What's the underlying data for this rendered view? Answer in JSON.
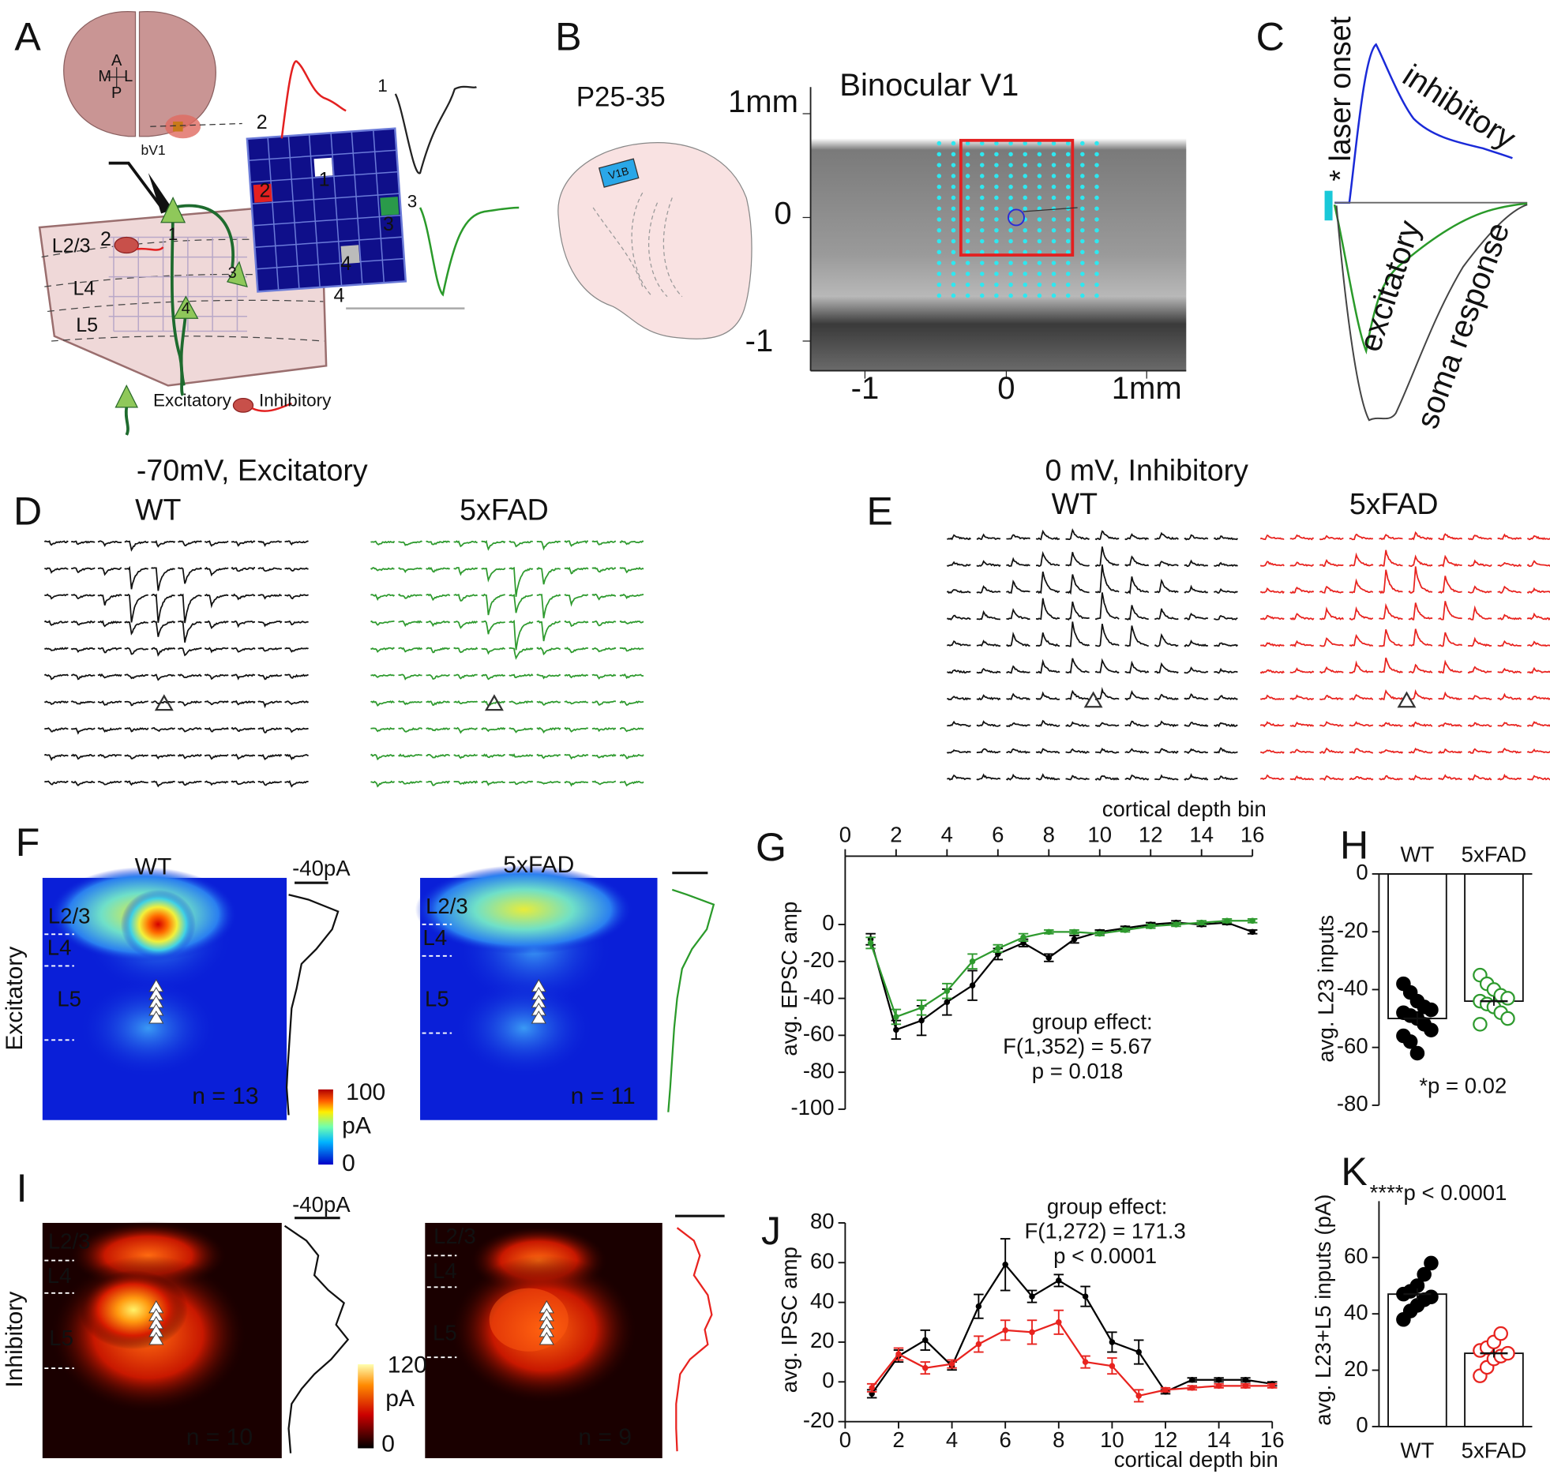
{
  "figure": {
    "panel_labels": [
      "A",
      "B",
      "C",
      "D",
      "E",
      "F",
      "G",
      "H",
      "I",
      "J",
      "K"
    ],
    "a": {
      "compass": [
        "A",
        "M",
        "L",
        "P"
      ],
      "region": "bV1",
      "layers": [
        "L2/3",
        "L4",
        "L5"
      ],
      "cells": [
        "1",
        "2",
        "3",
        "4"
      ],
      "legend": [
        "Excitatory",
        "Inhibitory"
      ]
    },
    "b": {
      "age": "P25-35",
      "title": "Binocular V1",
      "region": "V1B",
      "y_labels": [
        "1mm",
        "0",
        "-1"
      ],
      "x_labels": [
        "-1",
        "0",
        "1mm"
      ]
    },
    "c": {
      "stimulus": "* laser onset",
      "traces": [
        "inhibitory",
        "excitatory",
        "soma response"
      ]
    },
    "d": {
      "title": "-70mV, Excitatory",
      "groups": [
        "WT",
        "5xFAD"
      ]
    },
    "e": {
      "title": "0 mV, Inhibitory",
      "groups": [
        "WT",
        "5xFAD"
      ]
    },
    "f": {
      "row_label": "Excitatory",
      "groups": [
        "WT",
        "5xFAD"
      ],
      "layers": [
        "L2/3",
        "L4",
        "L5"
      ],
      "n": [
        "n = 13",
        "n = 11"
      ],
      "scale_bar": "-40pA",
      "colorbar": [
        "100",
        "pA",
        "0"
      ]
    },
    "i": {
      "row_label": "Inhibitory",
      "layers": [
        "L2/3",
        "L4",
        "L5"
      ],
      "n": [
        "n = 10",
        "n = 9"
      ],
      "scale_bar": "-40pA",
      "colorbar": [
        "120",
        "pA",
        "0"
      ]
    }
  },
  "chart_data": [
    {
      "type": "line",
      "x_label": "cortical depth bin",
      "y_label": "avg. EPSC amp",
      "xaxis_position": "top",
      "x": [
        1,
        2,
        3,
        4,
        5,
        6,
        7,
        8,
        9,
        10,
        11,
        12,
        13,
        14,
        15,
        16
      ],
      "series": [
        {
          "name": "WT",
          "color": "#000000",
          "values": [
            -8,
            -57,
            -52,
            -42,
            -33,
            -16,
            -10,
            -18,
            -8,
            -4,
            -2,
            0,
            1,
            0,
            1,
            -4
          ],
          "errors": [
            3,
            5,
            8,
            7,
            8,
            3,
            2,
            2,
            2,
            1,
            1,
            1,
            1,
            1,
            1,
            1
          ]
        },
        {
          "name": "5xFAD",
          "color": "#2e9a2e",
          "values": [
            -10,
            -50,
            -45,
            -36,
            -20,
            -13,
            -7,
            -4,
            -4,
            -5,
            -3,
            -1,
            0,
            1,
            2,
            2
          ],
          "errors": [
            3,
            4,
            4,
            4,
            4,
            2,
            2,
            1,
            1,
            1,
            1,
            1,
            1,
            1,
            1,
            1
          ]
        }
      ],
      "xlim": [
        0,
        16
      ],
      "xticks": [
        0,
        2,
        4,
        6,
        8,
        10,
        12,
        14,
        16
      ],
      "ylim": [
        -100,
        37
      ],
      "yticks": [
        -100,
        -80,
        -60,
        -40,
        -20,
        0
      ],
      "annotations": [
        "group effect:",
        "F(1,352) = 5.67",
        "p = 0.018"
      ]
    },
    {
      "type": "bar",
      "y_label": "avg. L23 inputs",
      "xaxis_position": "top",
      "categories": [
        "WT",
        "5xFAD"
      ],
      "values": [
        -50,
        -44
      ],
      "errors": [
        2,
        1.6
      ],
      "points": [
        [
          -38,
          -41,
          -44,
          -46,
          -47,
          -48,
          -49,
          -50,
          -52,
          -54,
          -56,
          -58,
          -62
        ],
        [
          -35,
          -38,
          -40,
          -42,
          -43,
          -44,
          -45,
          -46,
          -48,
          -50,
          -52
        ]
      ],
      "point_colors": [
        "#000000",
        "#2e9a2e"
      ],
      "marker_filled": [
        true,
        false
      ],
      "ylim": [
        -80,
        0
      ],
      "yticks": [
        -80,
        -60,
        -40,
        -20,
        0
      ],
      "annotations": [
        "*p = 0.02"
      ]
    },
    {
      "type": "line",
      "x_label": "cortical depth bin",
      "y_label": "avg. IPSC amp",
      "xaxis_position": "bottom",
      "x": [
        1,
        2,
        3,
        4,
        5,
        6,
        7,
        8,
        9,
        10,
        11,
        12,
        13,
        14,
        15,
        16
      ],
      "series": [
        {
          "name": "WT",
          "color": "#000000",
          "values": [
            -6,
            13,
            21,
            8,
            38,
            59,
            43,
            51,
            43,
            20,
            15,
            -5,
            1,
            1,
            1,
            -1
          ],
          "errors": [
            2,
            3,
            5,
            2,
            6,
            13,
            3,
            3,
            5,
            5,
            6,
            1,
            1,
            1,
            1,
            1
          ]
        },
        {
          "name": "5xFAD",
          "color": "#e8231f",
          "values": [
            -3,
            14,
            7,
            9,
            19,
            26,
            25,
            30,
            10,
            8,
            -7,
            -4,
            -3,
            -2,
            -2,
            -2
          ],
          "errors": [
            2,
            3,
            3,
            2,
            4,
            5,
            6,
            6,
            3,
            4,
            3,
            1,
            1,
            1,
            1,
            1
          ]
        }
      ],
      "xlim": [
        0,
        16
      ],
      "xticks": [
        0,
        2,
        4,
        6,
        8,
        10,
        12,
        14,
        16
      ],
      "ylim": [
        -20,
        80
      ],
      "yticks": [
        -20,
        0,
        20,
        40,
        60,
        80
      ],
      "annotations": [
        "group effect:",
        "F(1,272) = 171.3",
        "p < 0.0001"
      ]
    },
    {
      "type": "bar",
      "y_label": "avg. L23+L5 inputs (pA)",
      "xaxis_position": "bottom",
      "categories": [
        "WT",
        "5xFAD"
      ],
      "values": [
        47,
        26
      ],
      "errors": [
        2,
        1.5
      ],
      "points": [
        [
          38,
          41,
          43,
          45,
          46,
          47,
          48,
          50,
          54,
          58
        ],
        [
          18,
          21,
          24,
          25,
          26,
          27,
          28,
          30,
          33
        ]
      ],
      "point_colors": [
        "#000000",
        "#e8231f"
      ],
      "marker_filled": [
        true,
        false
      ],
      "ylim": [
        0,
        80
      ],
      "yticks": [
        0,
        20,
        40,
        60
      ],
      "annotations": [
        "****p < 0.0001"
      ]
    }
  ]
}
